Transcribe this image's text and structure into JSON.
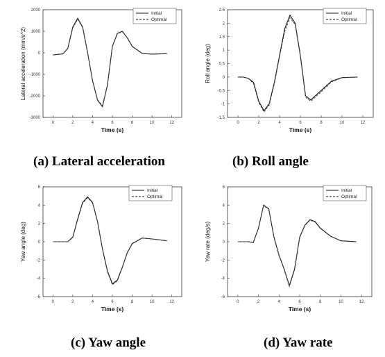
{
  "captions": {
    "a": "(a) Lateral acceleration",
    "b": "(b) Roll angle",
    "c": "(c) Yaw angle",
    "d": "(d) Yaw rate"
  },
  "chart_data": [
    {
      "type": "line",
      "caption": "(a) Lateral acceleration",
      "xlabel": "Time (s)",
      "ylabel": "Lateral acceleration (mm/s^2)",
      "xlim": [
        -1,
        13
      ],
      "ylim": [
        -3000,
        2000
      ],
      "xticks": [
        0,
        2,
        4,
        6,
        8,
        10,
        12
      ],
      "yticks": [
        -3000,
        -2000,
        -1000,
        0,
        1000,
        2000
      ],
      "legend_position": "top-right",
      "series": [
        {
          "name": "Initial",
          "style": "solid",
          "x": [
            0,
            1,
            1.5,
            2,
            2.5,
            3,
            3.5,
            4,
            4.5,
            5,
            5.5,
            6,
            6.5,
            7,
            7.5,
            8,
            9,
            10,
            11.5
          ],
          "y": [
            -100,
            -50,
            200,
            1200,
            1600,
            1200,
            0,
            -1300,
            -2200,
            -2500,
            -1500,
            300,
            900,
            1000,
            700,
            300,
            -30,
            -60,
            -40
          ]
        },
        {
          "name": "Optimal",
          "style": "dashed",
          "x": [
            0,
            1,
            1.5,
            2,
            2.5,
            3,
            3.5,
            4,
            4.5,
            5,
            5.5,
            6,
            6.5,
            7,
            7.5,
            8,
            9,
            10,
            11.5
          ],
          "y": [
            -100,
            -50,
            190,
            1150,
            1560,
            1170,
            0,
            -1280,
            -2180,
            -2460,
            -1470,
            280,
            880,
            980,
            690,
            290,
            -30,
            -60,
            -40
          ]
        }
      ]
    },
    {
      "type": "line",
      "caption": "(b) Roll angle",
      "xlabel": "Time (s)",
      "ylabel": "Roll angle (deg)",
      "xlim": [
        -1,
        13
      ],
      "ylim": [
        -1.5,
        2.5
      ],
      "xticks": [
        0,
        2,
        4,
        6,
        8,
        10,
        12
      ],
      "yticks": [
        -1.5,
        -1,
        -0.5,
        0,
        0.5,
        1,
        1.5,
        2,
        2.5
      ],
      "legend_position": "top-right",
      "series": [
        {
          "name": "Initial",
          "style": "solid",
          "x": [
            0,
            0.5,
            1,
            1.5,
            2,
            2.5,
            3,
            3.5,
            4,
            4.5,
            5,
            5.5,
            6,
            6.5,
            7,
            8,
            9,
            10,
            11.5
          ],
          "y": [
            0,
            0,
            -0.05,
            -0.2,
            -0.9,
            -1.25,
            -1.0,
            -0.2,
            0.8,
            1.8,
            2.3,
            2.0,
            0.8,
            -0.7,
            -0.85,
            -0.5,
            -0.15,
            -0.02,
            0
          ]
        },
        {
          "name": "Optimal",
          "style": "dashed",
          "x": [
            0,
            0.5,
            1,
            1.5,
            2,
            2.5,
            3,
            3.5,
            4,
            4.5,
            5,
            5.5,
            6,
            6.5,
            7,
            8,
            9,
            10,
            11.5
          ],
          "y": [
            0,
            0,
            -0.05,
            -0.25,
            -0.95,
            -1.3,
            -1.05,
            -0.25,
            0.75,
            1.7,
            2.2,
            1.95,
            0.75,
            -0.75,
            -0.9,
            -0.55,
            -0.18,
            -0.03,
            0
          ]
        }
      ]
    },
    {
      "type": "line",
      "caption": "(c) Yaw angle",
      "xlabel": "Time (s)",
      "ylabel": "Yaw angle (deg)",
      "xlim": [
        -1,
        13
      ],
      "ylim": [
        -6,
        6
      ],
      "xticks": [
        0,
        2,
        4,
        6,
        8,
        10,
        12
      ],
      "yticks": [
        -6,
        -4,
        -2,
        0,
        2,
        4,
        6
      ],
      "legend_position": "top-right",
      "series": [
        {
          "name": "Initial",
          "style": "solid",
          "x": [
            0,
            1,
            1.5,
            2,
            2.5,
            3,
            3.5,
            4,
            4.5,
            5,
            5.5,
            6,
            6.5,
            7,
            7.5,
            8,
            9,
            10,
            11.5
          ],
          "y": [
            0,
            0,
            0,
            0.5,
            2.5,
            4.3,
            4.9,
            4.3,
            2.2,
            -0.8,
            -3.2,
            -4.6,
            -4.2,
            -2.8,
            -1.2,
            -0.2,
            0.4,
            0.3,
            0.1
          ]
        },
        {
          "name": "Optimal",
          "style": "dashed",
          "x": [
            0,
            1,
            1.5,
            2,
            2.5,
            3,
            3.5,
            4,
            4.5,
            5,
            5.5,
            6,
            6.5,
            7,
            7.5,
            8,
            9,
            10,
            11.5
          ],
          "y": [
            0,
            0,
            0,
            0.45,
            2.4,
            4.2,
            4.8,
            4.25,
            2.15,
            -0.85,
            -3.3,
            -4.7,
            -4.3,
            -2.85,
            -1.25,
            -0.25,
            0.4,
            0.3,
            0.1
          ]
        }
      ]
    },
    {
      "type": "line",
      "caption": "(d) Yaw rate",
      "xlabel": "Time (s)",
      "ylabel": "Yaw rate (deg/s)",
      "xlim": [
        -1,
        13
      ],
      "ylim": [
        -6,
        6
      ],
      "xticks": [
        0,
        2,
        4,
        6,
        8,
        10,
        12
      ],
      "yticks": [
        -6,
        -4,
        -2,
        0,
        2,
        4,
        6
      ],
      "legend_position": "top-right",
      "series": [
        {
          "name": "Initial",
          "style": "solid",
          "x": [
            0,
            1,
            1.5,
            2,
            2.5,
            3,
            3.5,
            4,
            4.5,
            5,
            5.5,
            6,
            6.5,
            7,
            7.5,
            8,
            9,
            10,
            11.5
          ],
          "y": [
            0,
            0,
            -0.1,
            1.5,
            4.0,
            3.6,
            0.5,
            -1.5,
            -3.0,
            -4.8,
            -3.0,
            0.5,
            1.8,
            2.4,
            2.2,
            1.5,
            0.6,
            0.1,
            0
          ]
        },
        {
          "name": "Optimal",
          "style": "dashed",
          "x": [
            0,
            1,
            1.5,
            2,
            2.5,
            3,
            3.5,
            4,
            4.5,
            5,
            5.5,
            6,
            6.5,
            7,
            7.5,
            8,
            9,
            10,
            11.5
          ],
          "y": [
            0,
            0,
            -0.1,
            1.45,
            3.95,
            3.55,
            0.45,
            -1.55,
            -3.05,
            -4.9,
            -3.1,
            0.45,
            1.75,
            2.35,
            2.15,
            1.45,
            0.6,
            0.1,
            0
          ]
        }
      ]
    }
  ]
}
